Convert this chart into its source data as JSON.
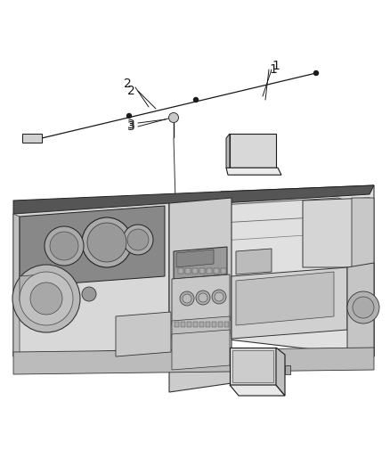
{
  "background_color": "#ffffff",
  "fig_width": 4.38,
  "fig_height": 5.33,
  "dpi": 100,
  "label_fontsize": 9,
  "line_color": "#1a1a1a",
  "label1": "1",
  "label2": "2",
  "label3": "3",
  "lw_main": 0.8,
  "lw_thin": 0.5,
  "lw_thick": 1.0,
  "gray_light": "#e8e8e8",
  "gray_mid": "#cccccc",
  "gray_dark": "#aaaaaa",
  "gray_darker": "#888888"
}
